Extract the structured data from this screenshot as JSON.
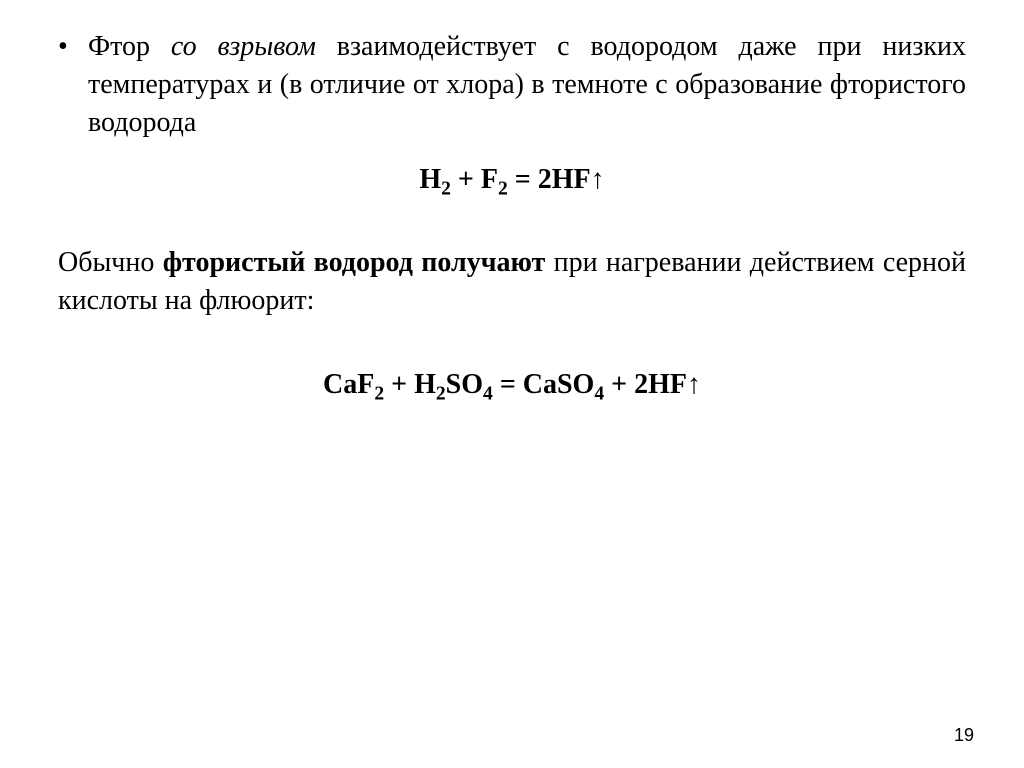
{
  "bullet": {
    "marker": "•",
    "text_pre": "Фтор ",
    "text_italic": "со взрывом",
    "text_post": " взаимодействует с водородом даже при низких температурах и (в отличие от хлора) в темноте с образование фтористого водорода"
  },
  "equation1": {
    "lhs1": "H",
    "lhs1_sub": "2",
    "plus": " + ",
    "lhs2": "F",
    "lhs2_sub": "2",
    "eq": " = ",
    "rhs": "2HF",
    "arrow": "↑"
  },
  "paragraph2": {
    "pre": "Обычно ",
    "bold": "фтористый водород получают",
    "post": " при нагревании действием серной кислоты на флюорит:"
  },
  "equation2": {
    "t1": "CaF",
    "s1": "2",
    "t2": " + H",
    "s2": "2",
    "t3": "SO",
    "s3": "4",
    "t4": " = CaSO",
    "s4": "4",
    "t5": " + 2HF",
    "arrow": "↑"
  },
  "page_number": "19",
  "colors": {
    "background": "#ffffff",
    "text": "#000000"
  },
  "fonts": {
    "body_family": "Times New Roman",
    "body_size_pt": 21,
    "equation_weight": "bold"
  }
}
